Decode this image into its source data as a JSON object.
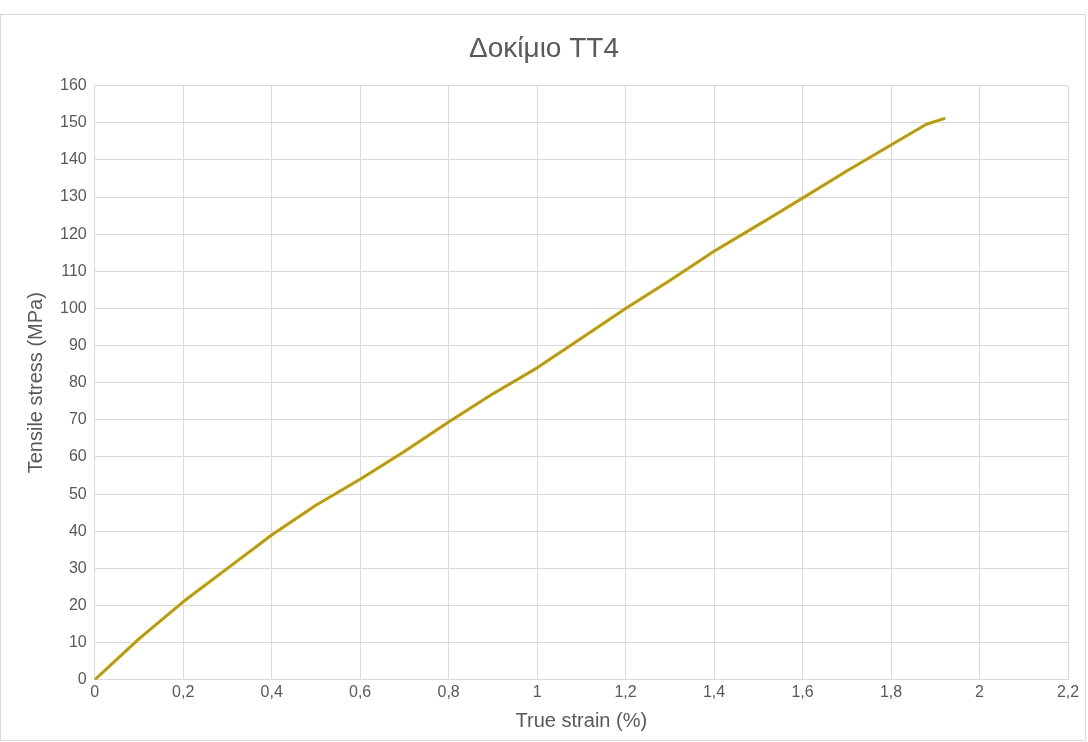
{
  "chart_data": {
    "type": "line",
    "title": "Δοκίμιο TT4",
    "xlabel": "True strain (%)",
    "ylabel": "Tensile stress (MPa)",
    "series": [
      {
        "color": "#bf9b00",
        "x": [
          0,
          0.05,
          0.1,
          0.2,
          0.3,
          0.4,
          0.5,
          0.6,
          0.7,
          0.8,
          0.9,
          1.0,
          1.1,
          1.2,
          1.3,
          1.4,
          1.5,
          1.6,
          1.7,
          1.8,
          1.85,
          1.88,
          1.92
        ],
        "values": [
          0,
          5.5,
          11,
          21,
          30,
          39,
          47,
          54,
          61.5,
          69.4,
          77,
          84,
          92,
          100,
          107.5,
          115.4,
          122.5,
          129.7,
          137,
          144,
          147.5,
          149.6,
          151.1
        ]
      }
    ],
    "xlim": [
      0,
      2.2
    ],
    "xticks": [
      0,
      {
        "value": 0.2,
        "label": "0,2"
      },
      {
        "value": 0.4,
        "label": "0,4"
      },
      {
        "value": 0.6,
        "label": "0,6"
      },
      {
        "value": 0.8,
        "label": "0,8"
      },
      1,
      {
        "value": 1.2,
        "label": "1,2"
      },
      {
        "value": 1.4,
        "label": "1,4"
      },
      {
        "value": 1.6,
        "label": "1,6"
      },
      {
        "value": 1.8,
        "label": "1,8"
      },
      2,
      {
        "value": 2.2,
        "label": "2,2"
      }
    ],
    "ylim": [
      0,
      160
    ],
    "yticks": [
      0,
      10,
      20,
      30,
      40,
      50,
      60,
      70,
      80,
      90,
      100,
      110,
      120,
      130,
      140,
      150,
      160
    ],
    "grid": true,
    "legend": false,
    "marker": "none",
    "line_style": "solid"
  }
}
